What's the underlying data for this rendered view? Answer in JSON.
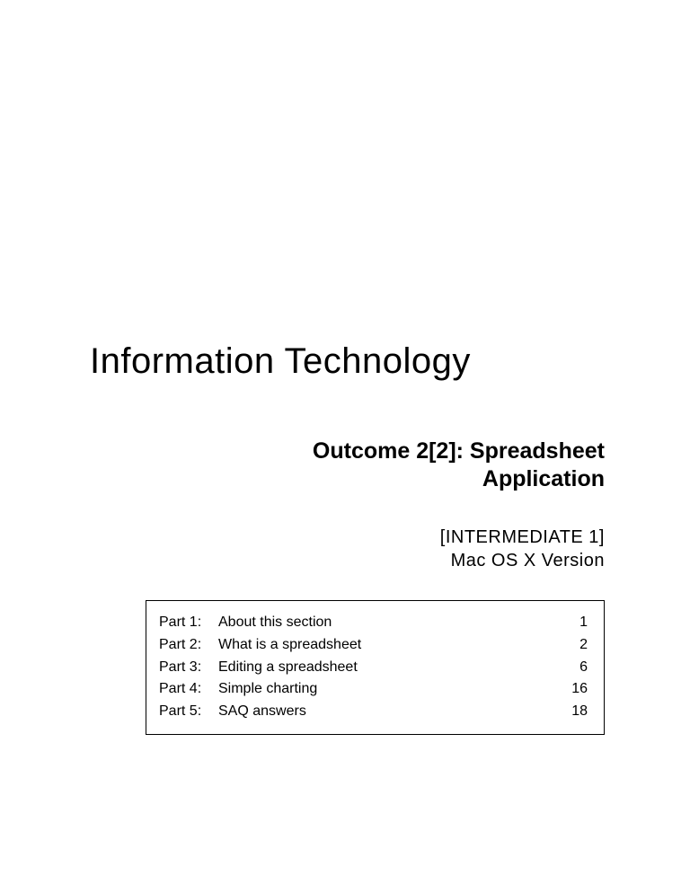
{
  "title": "Information Technology",
  "subtitle_line1": "Outcome 2[2]: Spreadsheet",
  "subtitle_line2": "Application",
  "level_line1": "[INTERMEDIATE 1]",
  "level_line2": "Mac OS X Version",
  "toc": [
    {
      "part": "Part 1:",
      "title": "About this section",
      "page": "1"
    },
    {
      "part": "Part 2:",
      "title": "What is a spreadsheet",
      "page": "2"
    },
    {
      "part": "Part 3:",
      "title": "Editing a spreadsheet",
      "page": "6"
    },
    {
      "part": "Part 4:",
      "title": "Simple charting",
      "page": "16"
    },
    {
      "part": "Part 5:",
      "title": "SAQ answers",
      "page": "18"
    }
  ]
}
